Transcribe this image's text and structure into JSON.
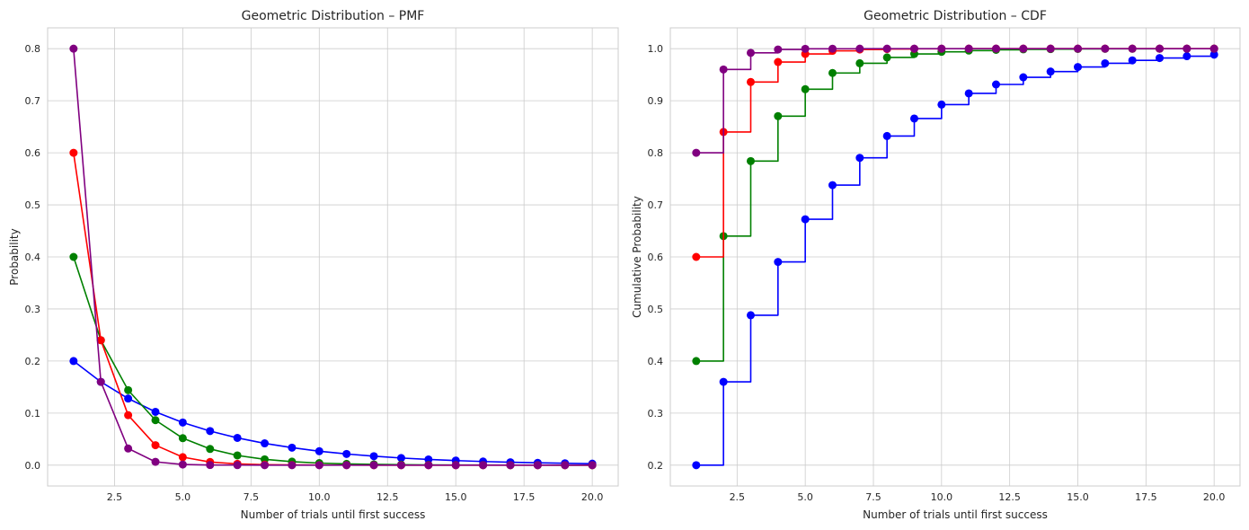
{
  "chart_data": [
    {
      "type": "line",
      "title": "Geometric Distribution – PMF",
      "xlabel": "Number of trials until first success",
      "ylabel": "Probability",
      "xlim": [
        0.05,
        20.95
      ],
      "ylim": [
        -0.04,
        0.84
      ],
      "xticks": [
        2.5,
        5.0,
        7.5,
        10.0,
        12.5,
        15.0,
        17.5,
        20.0
      ],
      "xtick_labels": [
        "2.5",
        "5.0",
        "7.5",
        "10.0",
        "12.5",
        "15.0",
        "17.5",
        "20.0"
      ],
      "yticks": [
        0.0,
        0.1,
        0.2,
        0.3,
        0.4,
        0.5,
        0.6,
        0.7,
        0.8
      ],
      "ytick_labels": [
        "0.0",
        "0.1",
        "0.2",
        "0.3",
        "0.4",
        "0.5",
        "0.6",
        "0.7",
        "0.8"
      ],
      "grid": true,
      "x": [
        1,
        2,
        3,
        4,
        5,
        6,
        7,
        8,
        9,
        10,
        11,
        12,
        13,
        14,
        15,
        16,
        17,
        18,
        19,
        20
      ],
      "series": [
        {
          "color": "#0000ff",
          "values": [
            0.2,
            0.16,
            0.128,
            0.1024,
            0.0819,
            0.0655,
            0.0524,
            0.0419,
            0.0336,
            0.0268,
            0.0215,
            0.0172,
            0.0137,
            0.011,
            0.0088,
            0.007,
            0.0056,
            0.0045,
            0.0036,
            0.0029
          ]
        },
        {
          "color": "#008000",
          "values": [
            0.4,
            0.24,
            0.144,
            0.0864,
            0.0518,
            0.0311,
            0.0187,
            0.0112,
            0.0067,
            0.004,
            0.0024,
            0.0015,
            0.0009,
            0.0005,
            0.0003,
            0.0002,
            0.0001,
            0.0001,
            0.0,
            0.0
          ]
        },
        {
          "color": "#ff0000",
          "values": [
            0.6,
            0.24,
            0.096,
            0.0384,
            0.0154,
            0.0061,
            0.0025,
            0.001,
            0.0004,
            0.0002,
            0.0001,
            0.0,
            0.0,
            0.0,
            0.0,
            0.0,
            0.0,
            0.0,
            0.0,
            0.0
          ]
        },
        {
          "color": "#800080",
          "values": [
            0.8,
            0.16,
            0.032,
            0.0064,
            0.0013,
            0.0003,
            0.0001,
            0.0,
            0.0,
            0.0,
            0.0,
            0.0,
            0.0,
            0.0,
            0.0,
            0.0,
            0.0,
            0.0,
            0.0,
            0.0
          ]
        }
      ]
    },
    {
      "type": "line",
      "step": "post",
      "title": "Geometric Distribution – CDF",
      "xlabel": "Number of trials until first success",
      "ylabel": "Cumulative Probability",
      "xlim": [
        0.05,
        20.95
      ],
      "ylim": [
        0.16,
        1.04
      ],
      "xticks": [
        2.5,
        5.0,
        7.5,
        10.0,
        12.5,
        15.0,
        17.5,
        20.0
      ],
      "xtick_labels": [
        "2.5",
        "5.0",
        "7.5",
        "10.0",
        "12.5",
        "15.0",
        "17.5",
        "20.0"
      ],
      "yticks": [
        0.2,
        0.3,
        0.4,
        0.5,
        0.6,
        0.7,
        0.8,
        0.9,
        1.0
      ],
      "ytick_labels": [
        "0.2",
        "0.3",
        "0.4",
        "0.5",
        "0.6",
        "0.7",
        "0.8",
        "0.9",
        "1.0"
      ],
      "grid": true,
      "x": [
        1,
        2,
        3,
        4,
        5,
        6,
        7,
        8,
        9,
        10,
        11,
        12,
        13,
        14,
        15,
        16,
        17,
        18,
        19,
        20
      ],
      "series": [
        {
          "color": "#0000ff",
          "values": [
            0.2,
            0.36,
            0.488,
            0.5904,
            0.6723,
            0.7379,
            0.7903,
            0.8322,
            0.8658,
            0.8926,
            0.9141,
            0.9313,
            0.945,
            0.956,
            0.9648,
            0.9719,
            0.9775,
            0.982,
            0.9856,
            0.9885
          ]
        },
        {
          "color": "#008000",
          "values": [
            0.4,
            0.64,
            0.784,
            0.8704,
            0.9222,
            0.9533,
            0.972,
            0.9832,
            0.9899,
            0.994,
            0.9964,
            0.9978,
            0.9987,
            0.9992,
            0.9995,
            0.9997,
            0.9998,
            0.9999,
            0.9999,
            1.0
          ]
        },
        {
          "color": "#ff0000",
          "values": [
            0.6,
            0.84,
            0.936,
            0.9744,
            0.9898,
            0.9959,
            0.9984,
            0.9993,
            0.9997,
            0.9999,
            1.0,
            1.0,
            1.0,
            1.0,
            1.0,
            1.0,
            1.0,
            1.0,
            1.0,
            1.0
          ]
        },
        {
          "color": "#800080",
          "values": [
            0.8,
            0.96,
            0.992,
            0.9984,
            0.9997,
            0.9999,
            1.0,
            1.0,
            1.0,
            1.0,
            1.0,
            1.0,
            1.0,
            1.0,
            1.0,
            1.0,
            1.0,
            1.0,
            1.0,
            1.0
          ]
        }
      ]
    }
  ]
}
